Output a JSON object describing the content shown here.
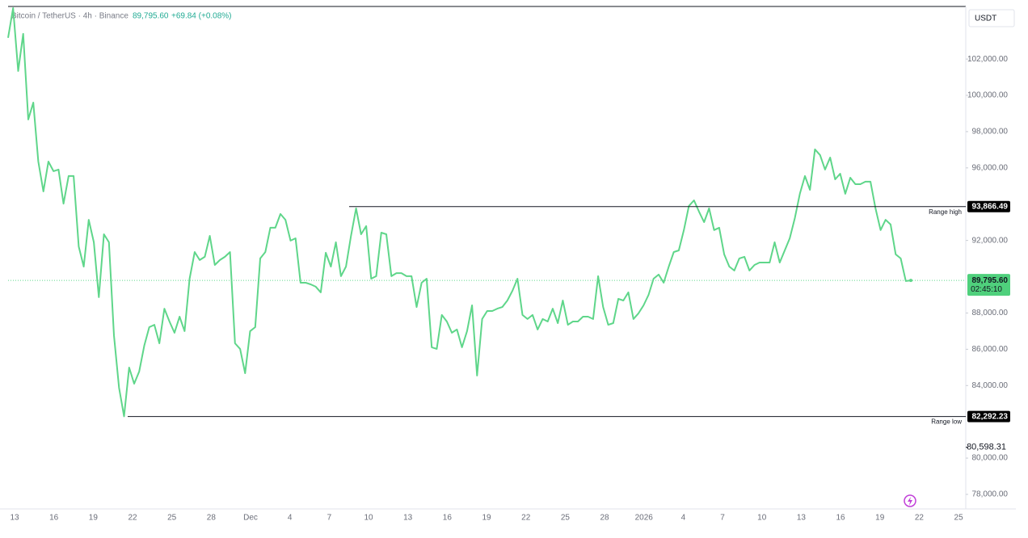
{
  "chart_data": {
    "type": "line",
    "title": "Bitcoin / TetherUS · 4h · Binance",
    "header_price": "89,795.60",
    "header_change": "+69.84 (+0.08%)",
    "currency": "USDT",
    "color": "#5fd68a",
    "ylim": [
      77198,
      104900
    ],
    "yticks": [
      {
        "value": 78000,
        "label": "78,000.00"
      },
      {
        "value": 80000,
        "label": "80,000.00"
      },
      {
        "value": 84000,
        "label": "84,000.00"
      },
      {
        "value": 86000,
        "label": "86,000.00"
      },
      {
        "value": 88000,
        "label": "88,000.00"
      },
      {
        "value": 92000,
        "label": "92,000.00"
      },
      {
        "value": 96000,
        "label": "96,000.00"
      },
      {
        "value": 98000,
        "label": "98,000.00"
      },
      {
        "value": 100000,
        "label": "100,000.00"
      },
      {
        "value": 102000,
        "label": "102,000.00"
      }
    ],
    "x_labels": [
      "13",
      "16",
      "19",
      "22",
      "25",
      "28",
      "Dec",
      "4",
      "7",
      "10",
      "13",
      "16",
      "19",
      "22",
      "25",
      "28",
      "2026",
      "4",
      "7",
      "10",
      "13",
      "16",
      "19",
      "22",
      "25"
    ],
    "values": [
      103170,
      104810,
      101340,
      103390,
      98670,
      99600,
      96350,
      94700,
      96350,
      95820,
      95910,
      94030,
      95550,
      95550,
      91670,
      90560,
      93140,
      91900,
      88870,
      92340,
      91900,
      86770,
      83880,
      82300,
      84990,
      84100,
      84770,
      86200,
      87220,
      87350,
      86330,
      88240,
      87530,
      86910,
      87800,
      87000,
      89890,
      91360,
      90920,
      91100,
      92250,
      90650,
      90920,
      91100,
      91360,
      86330,
      86020,
      84680,
      87000,
      87220,
      91010,
      91360,
      92700,
      92700,
      93460,
      93140,
      91990,
      92120,
      89670,
      89670,
      89580,
      89450,
      89140,
      91320,
      90560,
      91900,
      90030,
      90560,
      92250,
      93770,
      92340,
      92790,
      89890,
      90030,
      92430,
      92340,
      90030,
      90200,
      90200,
      90030,
      90030,
      88330,
      89670,
      89890,
      86110,
      86020,
      87890,
      87530,
      86910,
      87090,
      86110,
      87000,
      88420,
      84550,
      87670,
      88110,
      88110,
      88240,
      88330,
      88690,
      89220,
      89890,
      87890,
      87670,
      87890,
      87090,
      87670,
      87530,
      88240,
      87440,
      88690,
      87350,
      87530,
      87530,
      87800,
      87800,
      87670,
      90030,
      88330,
      87350,
      87440,
      88780,
      88690,
      89140,
      87670,
      87980,
      88420,
      89000,
      89890,
      90120,
      89670,
      90560,
      91360,
      91450,
      92570,
      93900,
      94210,
      93590,
      93010,
      93770,
      92570,
      92700,
      91230,
      90560,
      90340,
      91010,
      91100,
      90340,
      90650,
      90780,
      90780,
      90780,
      91900,
      90780,
      91450,
      92120,
      93230,
      94570,
      95550,
      94790,
      97020,
      96710,
      95910,
      96570,
      95370,
      95680,
      94570,
      95460,
      95100,
      95100,
      95240,
      95240,
      93770,
      92570,
      93140,
      92880,
      91230,
      91010,
      89760,
      89795.6
    ],
    "last_price": {
      "value": 89795.6,
      "label": "89,795.60",
      "countdown": "02:45:10"
    },
    "range_high": {
      "value": 93866.49,
      "label": "93,866.49",
      "text": "Range high"
    },
    "range_low": {
      "value": 82292.23,
      "label": "82,292.23",
      "text": "Range low"
    },
    "marker_price": {
      "value": 80598.31,
      "label": "80,598.31"
    }
  }
}
